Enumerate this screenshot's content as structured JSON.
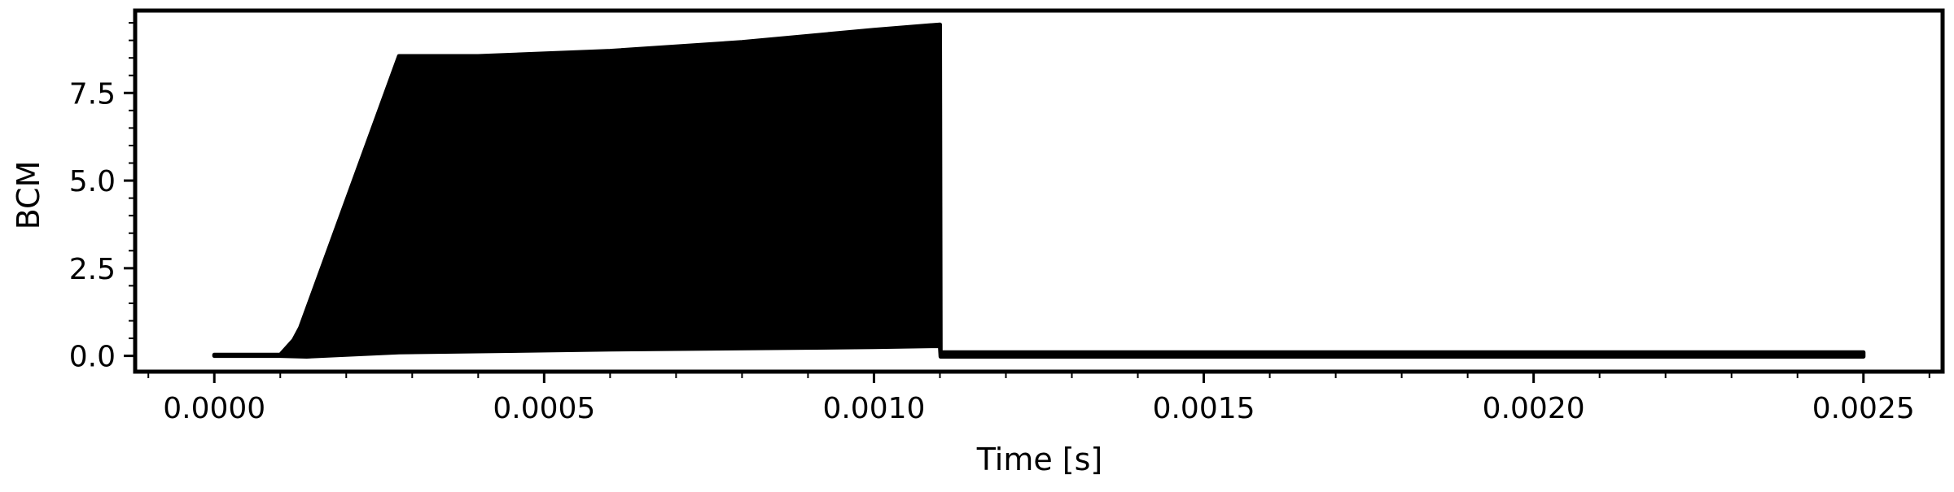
{
  "chart_data": {
    "type": "area",
    "title": "",
    "xlabel": "Time [s]",
    "ylabel": "BCM",
    "xlim": [
      -0.00012,
      0.00262
    ],
    "ylim": [
      -0.45,
      9.85
    ],
    "x_ticks": [
      "0.0000",
      "0.0005",
      "0.0010",
      "0.0015",
      "0.0020",
      "0.0025"
    ],
    "x_tick_values": [
      0.0,
      0.0005,
      0.001,
      0.0015,
      0.002,
      0.0025
    ],
    "y_ticks": [
      "0.0",
      "2.5",
      "5.0",
      "7.5"
    ],
    "y_tick_values": [
      0.0,
      2.5,
      5.0,
      7.5
    ],
    "grid": false,
    "minor_ticks": true,
    "series": [
      {
        "color": "#000000",
        "upper_envelope": {
          "x": [
            0.0,
            0.0001,
            0.00012,
            0.00013,
            0.00028,
            0.0004,
            0.0006,
            0.0008,
            0.001,
            0.0011,
            0.001101,
            0.0015,
            0.002,
            0.0025
          ],
          "y": [
            0.03,
            0.03,
            0.45,
            0.8,
            8.55,
            8.55,
            8.7,
            8.95,
            9.3,
            9.45,
            0.1,
            0.1,
            0.1,
            0.1
          ]
        },
        "lower_envelope": {
          "x": [
            0.0,
            0.0001,
            0.00014,
            0.00028,
            0.0006,
            0.001,
            0.0011,
            0.001101,
            0.0015,
            0.002,
            0.0025
          ],
          "y": [
            0.0,
            0.0,
            -0.02,
            0.1,
            0.18,
            0.25,
            0.28,
            -0.02,
            -0.02,
            -0.02,
            -0.02
          ]
        }
      }
    ]
  }
}
